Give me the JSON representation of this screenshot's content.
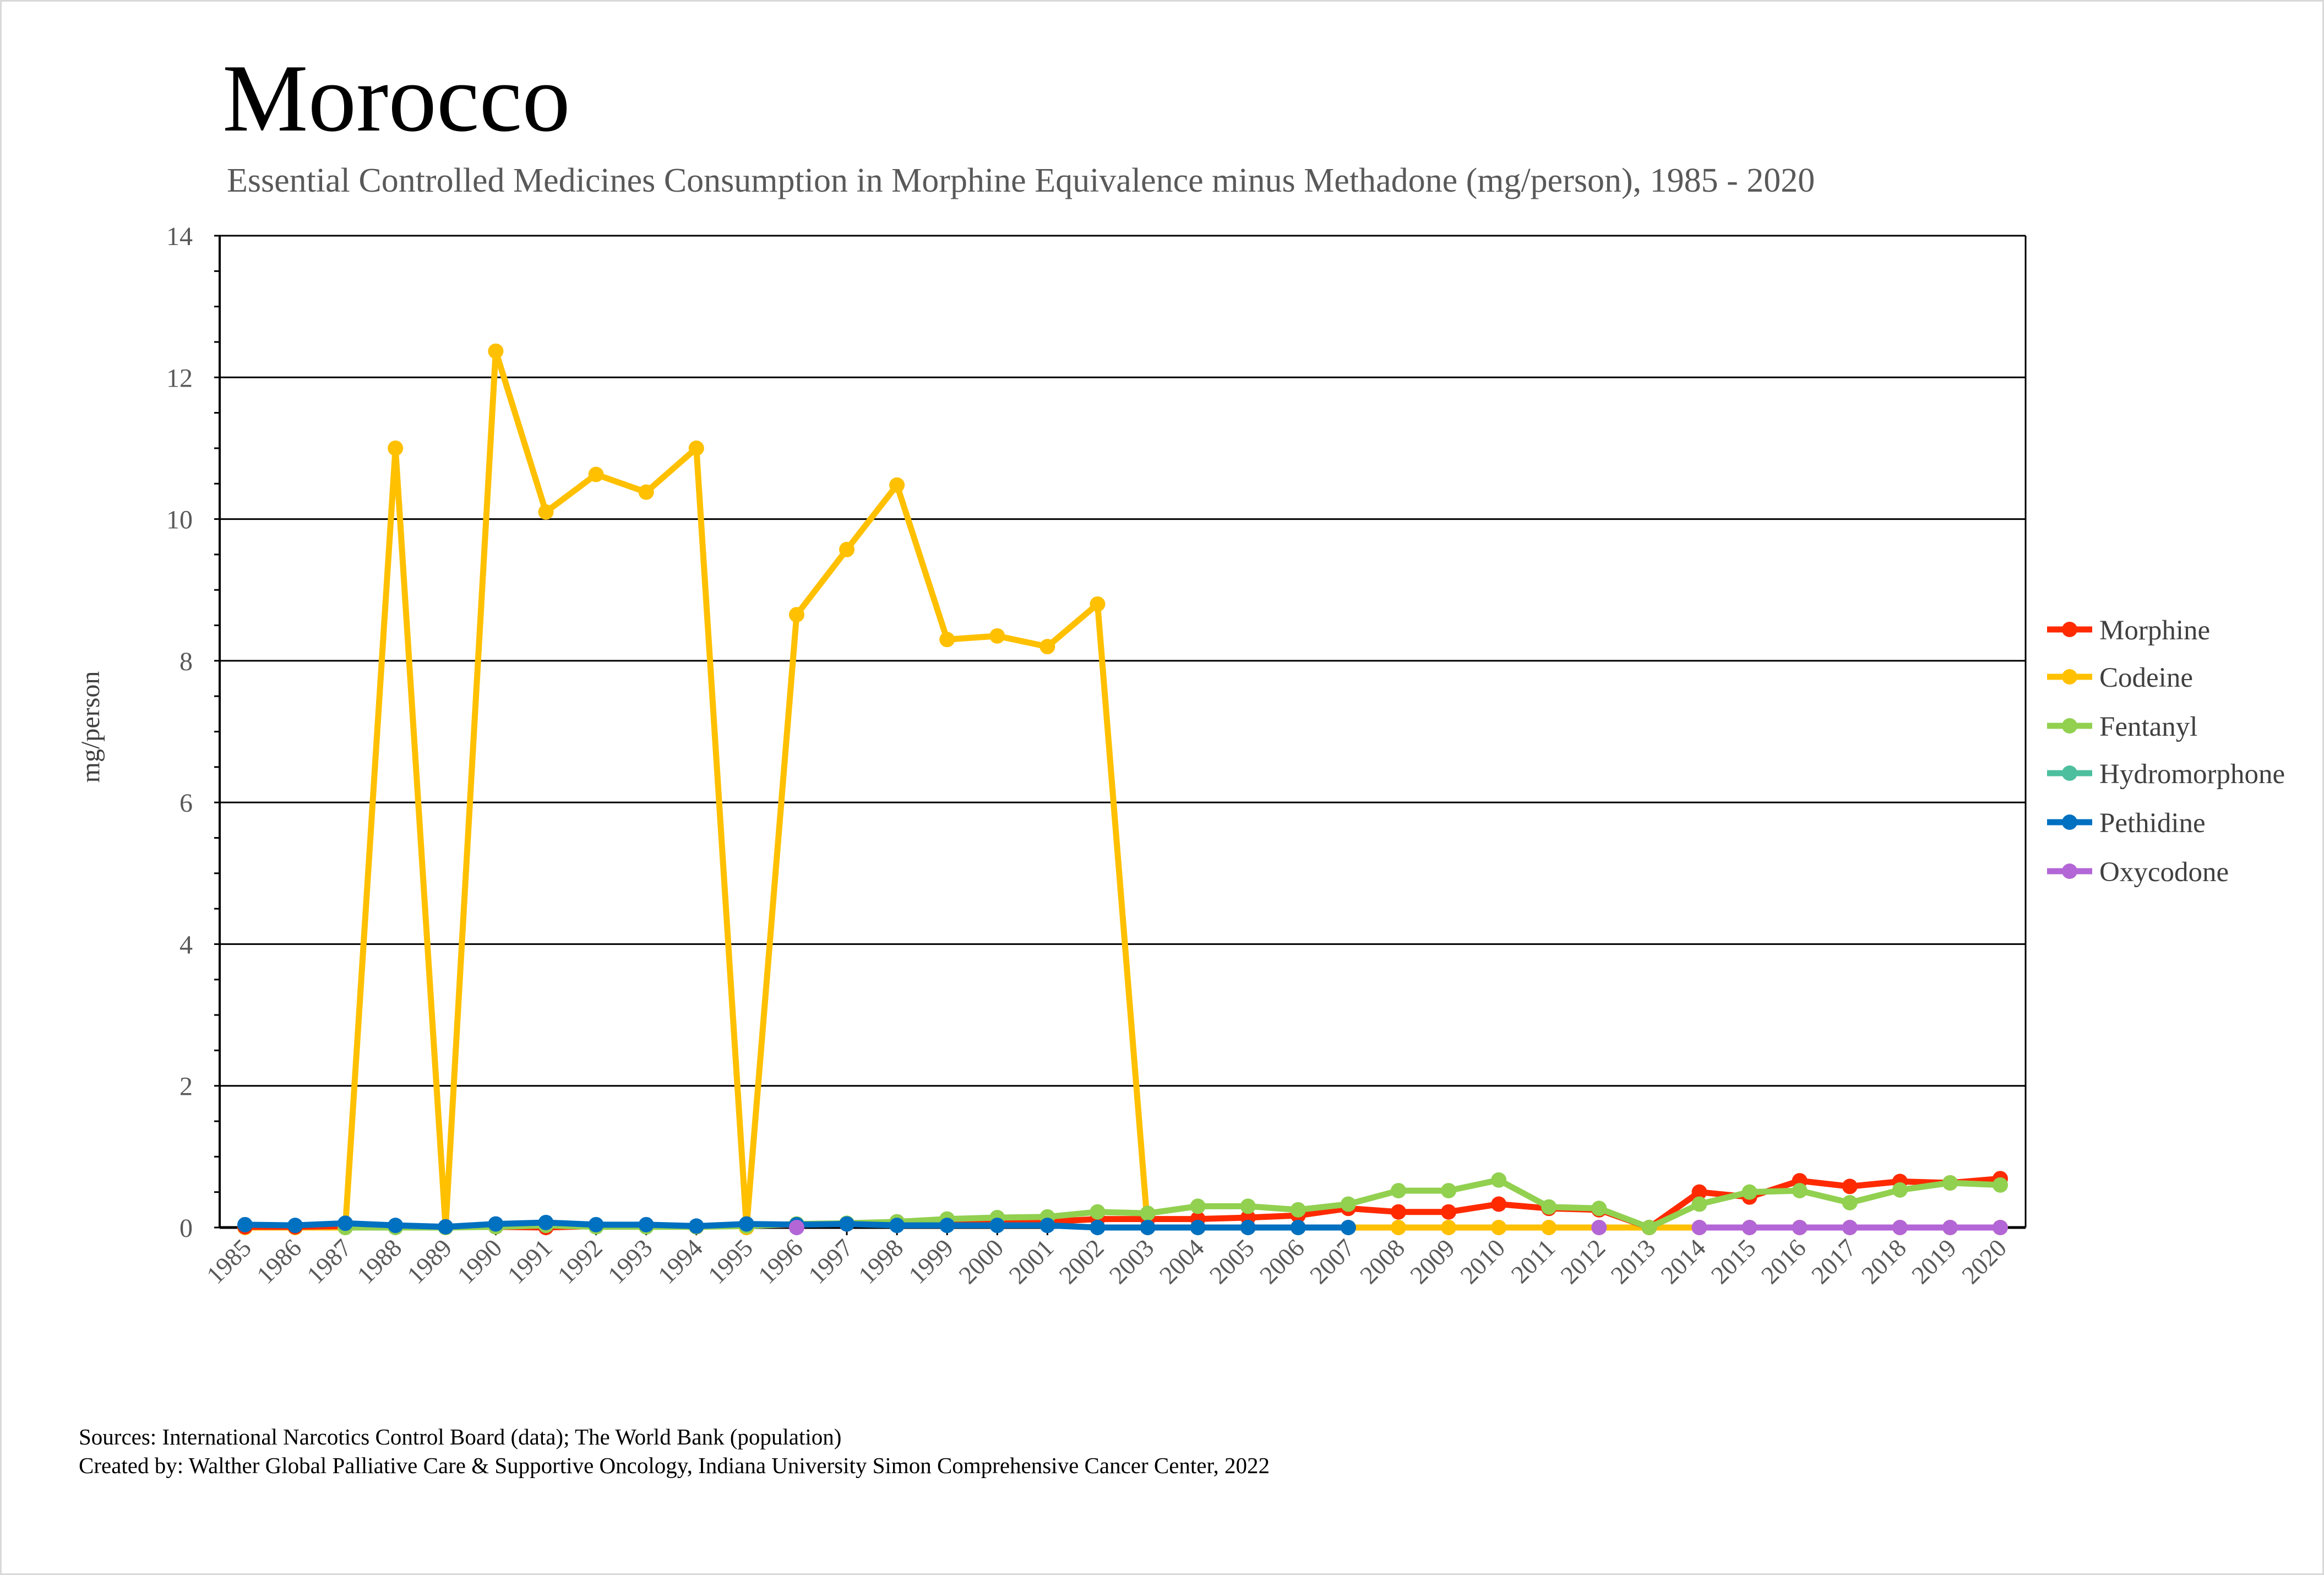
{
  "chart_data": {
    "type": "line",
    "title": "Morocco",
    "subtitle": "Essential Controlled Medicines Consumption in Morphine Equivalence minus Methadone (mg/person), 1985 - 2020",
    "xlabel": "",
    "ylabel": "mg/person",
    "ylim": [
      0,
      14
    ],
    "yticks": [
      0,
      2,
      4,
      6,
      8,
      10,
      12,
      14
    ],
    "grid": true,
    "legend_position": "right",
    "x": [
      "1985",
      "1986",
      "1987",
      "1988",
      "1989",
      "1990",
      "1991",
      "1992",
      "1993",
      "1994",
      "1995",
      "1996",
      "1997",
      "1998",
      "1999",
      "2000",
      "2001",
      "2002",
      "2003",
      "2004",
      "2005",
      "2006",
      "2007",
      "2008",
      "2009",
      "2010",
      "2011",
      "2012",
      "2013",
      "2014",
      "2015",
      "2016",
      "2017",
      "2018",
      "2019",
      "2020"
    ],
    "series": [
      {
        "name": "Morphine",
        "color": "#ff2a00",
        "values": [
          0.01,
          0.01,
          0.02,
          0.01,
          0.01,
          0.01,
          0.0,
          0.02,
          0.02,
          0.01,
          0.03,
          0.04,
          0.05,
          0.08,
          0.07,
          0.08,
          0.08,
          0.12,
          0.12,
          0.12,
          0.14,
          0.17,
          0.27,
          0.22,
          0.22,
          0.33,
          0.27,
          0.25,
          0.0,
          0.5,
          0.43,
          0.66,
          0.58,
          0.65,
          0.63,
          0.69
        ]
      },
      {
        "name": "Codeine",
        "color": "#ffc000",
        "values": [
          0,
          0,
          0,
          11.0,
          0,
          12.37,
          10.1,
          10.63,
          10.38,
          11.0,
          0,
          8.65,
          9.57,
          10.48,
          8.3,
          8.35,
          8.2,
          8.8,
          0,
          0,
          0,
          0,
          0,
          0,
          0,
          0,
          0,
          0,
          0,
          0,
          0,
          0,
          0,
          0,
          0,
          0
        ]
      },
      {
        "name": "Fentanyl",
        "color": "#92d050",
        "values": [
          null,
          null,
          0,
          0,
          0,
          0.01,
          0.03,
          0.01,
          0.01,
          0.01,
          0.02,
          0.05,
          0.06,
          0.08,
          0.12,
          0.14,
          0.15,
          0.22,
          0.2,
          0.3,
          0.3,
          0.25,
          0.33,
          0.52,
          0.52,
          0.67,
          0.29,
          0.27,
          0.0,
          0.33,
          0.5,
          0.52,
          0.35,
          0.53,
          0.63,
          0.6
        ]
      },
      {
        "name": "Hydromorphone",
        "color": "#4dbf9f",
        "values": [
          null,
          null,
          null,
          null,
          null,
          null,
          null,
          null,
          null,
          null,
          null,
          null,
          null,
          null,
          null,
          null,
          null,
          null,
          null,
          null,
          null,
          null,
          null,
          null,
          null,
          null,
          null,
          null,
          null,
          null,
          null,
          null,
          null,
          null,
          null,
          null
        ]
      },
      {
        "name": "Pethidine",
        "color": "#0070c0",
        "values": [
          0.04,
          0.03,
          0.06,
          0.03,
          0.01,
          0.05,
          0.07,
          0.04,
          0.04,
          0.02,
          0.05,
          0.04,
          0.05,
          0.03,
          0.03,
          0.03,
          0.03,
          0,
          0,
          0,
          0,
          0,
          0,
          null,
          null,
          null,
          null,
          null,
          null,
          null,
          null,
          null,
          null,
          null,
          null,
          null
        ]
      },
      {
        "name": "Oxycodone",
        "color": "#b366d6",
        "values": [
          null,
          null,
          null,
          null,
          null,
          null,
          null,
          null,
          null,
          null,
          null,
          0,
          null,
          null,
          null,
          null,
          null,
          null,
          null,
          null,
          null,
          null,
          null,
          null,
          null,
          null,
          null,
          0,
          null,
          0,
          0,
          0,
          0,
          0,
          0,
          0
        ]
      }
    ]
  },
  "footer": {
    "sources": "Sources: International Narcotics Control Board (data); The World Bank (population)",
    "created_by": "Created by: Walther Global Palliative Care & Supportive Oncology, Indiana University Simon Comprehensive Cancer Center, 2022"
  }
}
